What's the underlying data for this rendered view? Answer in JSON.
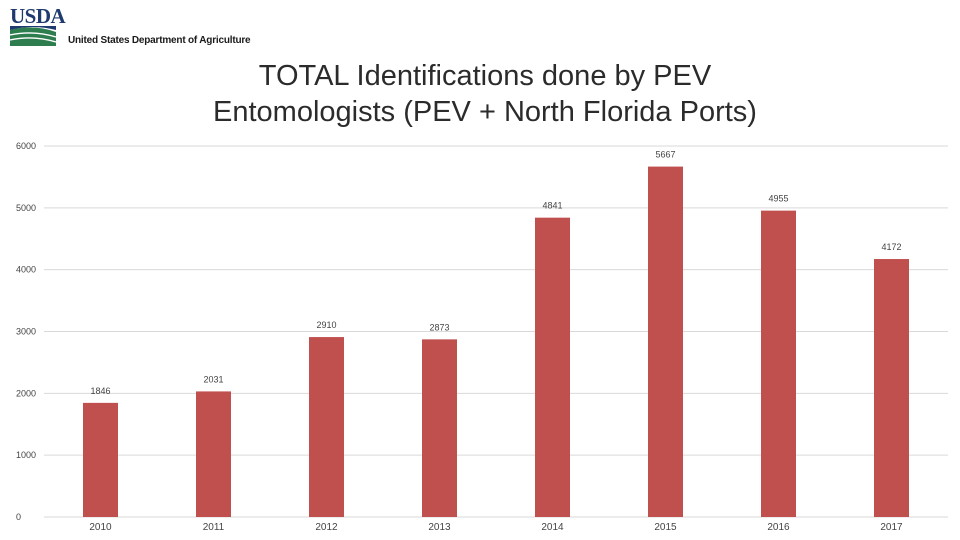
{
  "logo": {
    "wordmark": "USDA",
    "agency": "United States Department of Agriculture"
  },
  "colors": {
    "bar": "#c0504d",
    "grid": "#d9d9d9",
    "usda_blue": "#1f3a6e",
    "usda_green": "#2e7d4f"
  },
  "chart_data": {
    "type": "bar",
    "title_lines": [
      "TOTAL Identifications done by PEV",
      "Entomologists (PEV + North Florida Ports)"
    ],
    "categories": [
      "2010",
      "2011",
      "2012",
      "2013",
      "2014",
      "2015",
      "2016",
      "2017"
    ],
    "values": [
      1846,
      2031,
      2910,
      2873,
      4841,
      5667,
      4955,
      4172
    ],
    "data_labels": [
      "1846",
      "2031",
      "2910",
      "2873",
      "4841",
      "5667",
      "4955",
      "4172"
    ],
    "y_ticks": [
      0,
      1000,
      2000,
      3000,
      4000,
      5000,
      6000
    ],
    "y_tick_labels": [
      "0",
      "1000",
      "2000",
      "3000",
      "4000",
      "5000",
      "6000"
    ],
    "ylim": [
      0,
      6000
    ],
    "grid": true,
    "legend": "none"
  }
}
